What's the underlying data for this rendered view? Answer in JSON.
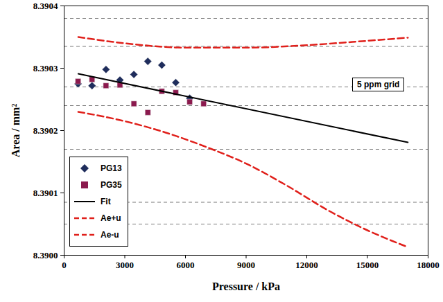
{
  "chart_data": {
    "type": "scatter",
    "x_label": "Pressure / kPa",
    "y_label": "Area / mm²",
    "xlim": [
      0,
      18000
    ],
    "xticks": [
      0,
      3000,
      6000,
      9000,
      12000,
      15000,
      18000
    ],
    "ylim": [
      8.39,
      8.3904
    ],
    "yticks": [
      {
        "value": 8.39,
        "label": "8.3900"
      },
      8.3901,
      8.3902,
      8.3903,
      8.3904
    ],
    "ppm_grid": [
      8.39038,
      8.390335,
      8.39027,
      8.39024,
      8.39017,
      8.390085,
      8.39005
    ],
    "annotations": [
      {
        "text": "5 ppm grid"
      }
    ],
    "legend": "lower left",
    "series": [
      {
        "name": "PG13",
        "type": "scatter",
        "marker": "diamond",
        "color": "#1f2d5c",
        "x": [
          690,
          1380,
          2070,
          2760,
          3450,
          4140,
          4830,
          5520,
          6210
        ],
        "values": [
          8.390275,
          8.390272,
          8.390298,
          8.390281,
          8.39029,
          8.390311,
          8.390305,
          8.390277,
          8.390252
        ]
      },
      {
        "name": "PG35",
        "type": "scatter",
        "marker": "square",
        "color": "#8b1a4e",
        "x": [
          690,
          1380,
          2070,
          2760,
          3450,
          4140,
          4830,
          5520,
          6210,
          6900
        ],
        "values": [
          8.390279,
          8.390282,
          8.390272,
          8.390273,
          8.390243,
          8.390229,
          8.390263,
          8.390261,
          8.390246,
          8.390243
        ]
      },
      {
        "name": "Fit",
        "type": "line",
        "line_style": "solid",
        "color": "#000000",
        "x": [
          700,
          17000
        ],
        "values": [
          8.390291,
          8.390181
        ]
      },
      {
        "name": "Ae+u",
        "type": "line",
        "line_style": "dashed",
        "color": "#e0201b",
        "x": [
          700,
          3000,
          6000,
          9000,
          12000,
          15000,
          17000
        ],
        "values": [
          8.39035,
          8.39034,
          8.390333,
          8.390333,
          8.390337,
          8.390344,
          8.390349
        ]
      },
      {
        "name": "Ae-u",
        "type": "line",
        "line_style": "dashed",
        "color": "#e0201b",
        "x": [
          700,
          3000,
          5000,
          7000,
          9000,
          11000,
          13000,
          15000,
          17000
        ],
        "values": [
          8.39023,
          8.390215,
          8.390197,
          8.390174,
          8.390147,
          8.390112,
          8.390073,
          8.39004,
          8.390013
        ]
      }
    ]
  }
}
